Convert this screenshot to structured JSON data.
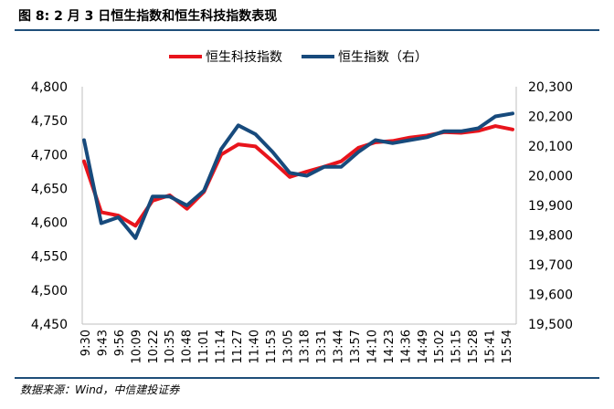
{
  "figure": {
    "title": "图 8: 2 月 3 日恒生指数和恒生科技指数表现",
    "source": "数据来源：Wind，中信建投证券"
  },
  "colors": {
    "hstech": "#e8141c",
    "hsi": "#174a7c",
    "axis": "#bfbfbf",
    "rule": "#1f4e79"
  },
  "chart_data": {
    "type": "line",
    "legend": [
      "恒生科技指数",
      "恒生指数（右）"
    ],
    "legend_position": "top-center",
    "grid": false,
    "categories": [
      "9:30",
      "9:43",
      "9:56",
      "10:09",
      "10:22",
      "10:35",
      "10:48",
      "11:01",
      "11:14",
      "11:27",
      "11:40",
      "11:53",
      "13:05",
      "13:18",
      "13:31",
      "13:44",
      "13:57",
      "14:10",
      "14:23",
      "14:36",
      "14:49",
      "15:02",
      "15:15",
      "15:28",
      "15:41",
      "15:54"
    ],
    "y_left": {
      "min": 4450,
      "max": 4800,
      "ticks": [
        "4,450",
        "4,500",
        "4,550",
        "4,600",
        "4,650",
        "4,700",
        "4,750",
        "4,800"
      ]
    },
    "y_right": {
      "min": 19500,
      "max": 20300,
      "ticks": [
        "19,500",
        "19,600",
        "19,700",
        "19,800",
        "19,900",
        "20,000",
        "20,100",
        "20,200",
        "20,300"
      ]
    },
    "series": [
      {
        "name": "恒生科技指数",
        "axis": "left",
        "values": [
          4690,
          4615,
          4610,
          4595,
          4632,
          4640,
          4620,
          4645,
          4700,
          4715,
          4712,
          4690,
          4667,
          4675,
          4682,
          4690,
          4710,
          4718,
          4720,
          4725,
          4728,
          4733,
          4732,
          4735,
          4742,
          4737
        ]
      },
      {
        "name": "恒生指数（右）",
        "axis": "right",
        "values": [
          20120,
          19840,
          19860,
          19790,
          19930,
          19930,
          19900,
          19950,
          20090,
          20170,
          20140,
          20080,
          20010,
          20000,
          20030,
          20030,
          20080,
          20120,
          20110,
          20120,
          20130,
          20150,
          20150,
          20160,
          20200,
          20210
        ]
      }
    ]
  }
}
